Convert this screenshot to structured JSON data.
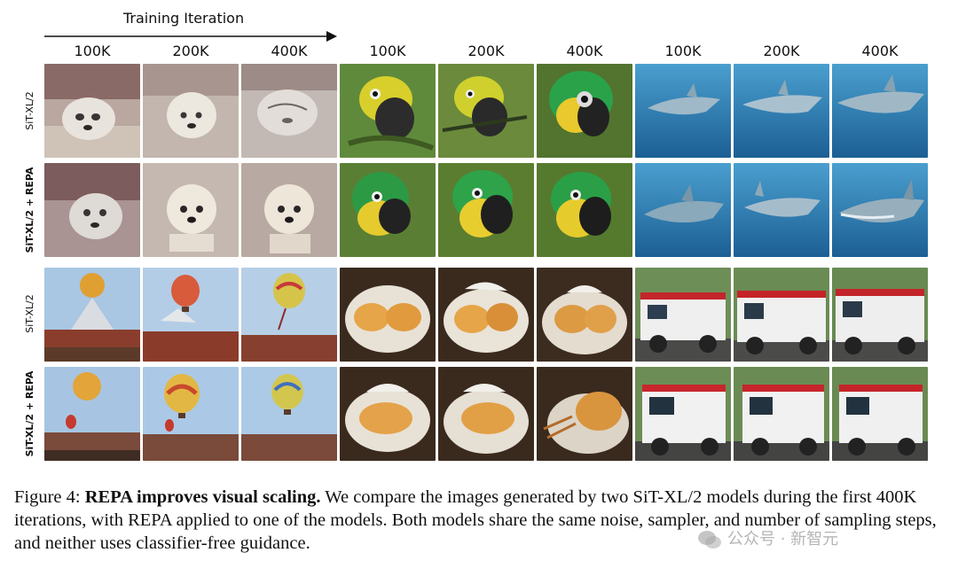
{
  "header": {
    "training_label": "Training Iteration",
    "column_labels": [
      "100K",
      "200K",
      "400K",
      "100K",
      "200K",
      "400K",
      "100K",
      "200K",
      "400K"
    ]
  },
  "row_labels": [
    "SiT-XL/2",
    "SiT-XL/2 + REPA",
    "SiT-XL/2",
    "SiT-XL/2 + REPA"
  ],
  "caption": {
    "figure_label": "Figure 4:",
    "title": "REPA improves visual scaling.",
    "body": "We compare the images generated by two SiT-XL/2 models during the first 400K iterations, with REPA applied to one of the models. Both models share the same noise, sampler, and number of sampling steps, and neither uses classifier-free guidance."
  },
  "watermark": {
    "text": "公众号 · 新智元"
  }
}
